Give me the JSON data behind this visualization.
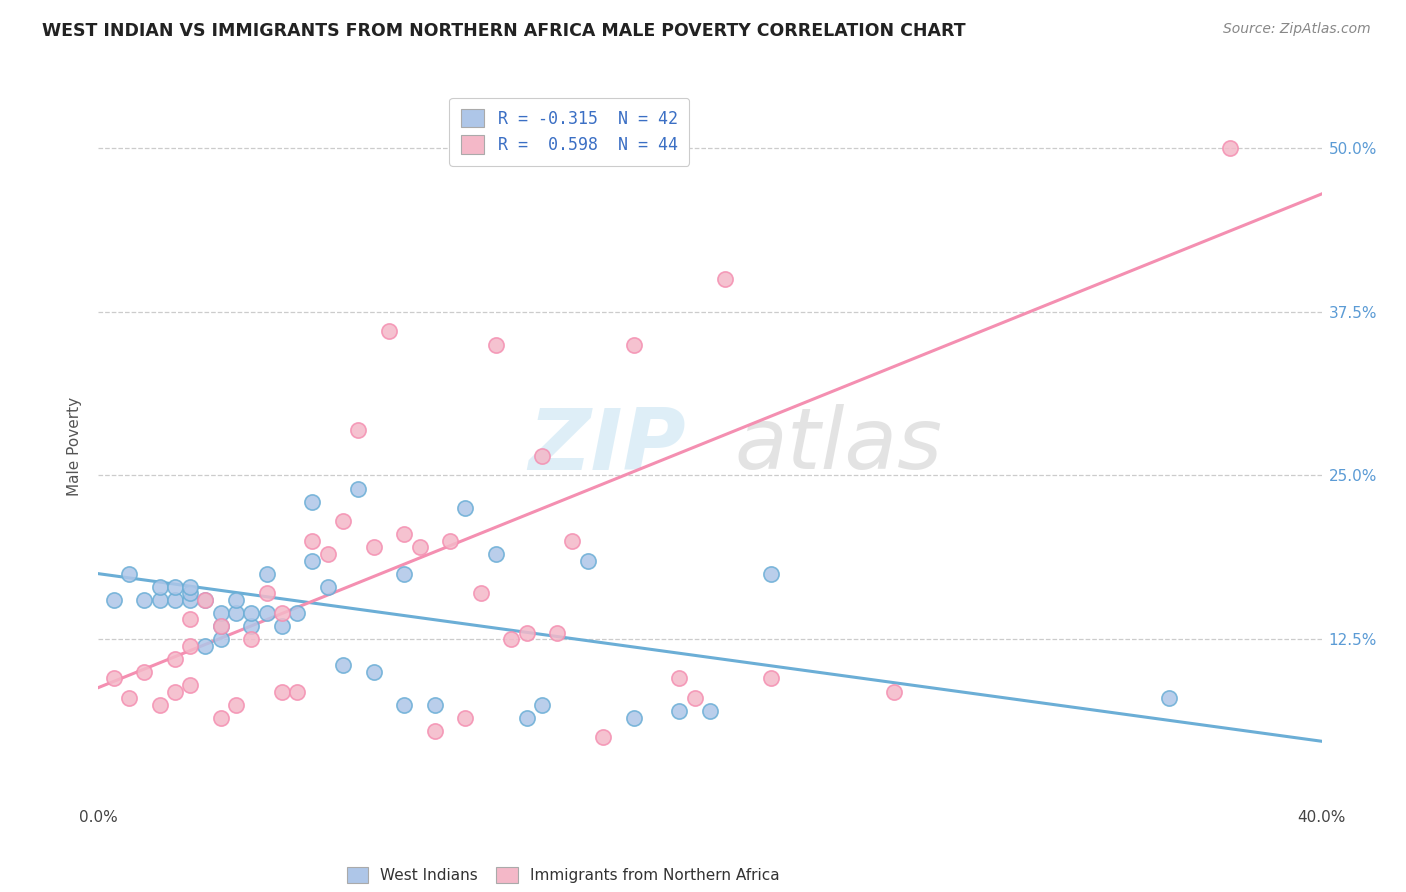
{
  "title": "WEST INDIAN VS IMMIGRANTS FROM NORTHERN AFRICA MALE POVERTY CORRELATION CHART",
  "source": "Source: ZipAtlas.com",
  "ylabel": "Male Poverty",
  "yticks": [
    "12.5%",
    "25.0%",
    "37.5%",
    "50.0%"
  ],
  "ytick_vals": [
    0.125,
    0.25,
    0.375,
    0.5
  ],
  "xlim": [
    0.0,
    0.4
  ],
  "ylim": [
    0.0,
    0.545
  ],
  "bottom_legend1": "West Indians",
  "bottom_legend2": "Immigrants from Northern Africa",
  "blue_color": "#6baed6",
  "pink_color": "#f48fb1",
  "blue_fill": "#aec6e8",
  "pink_fill": "#f4b8c8",
  "blue_scatter_x": [
    0.005,
    0.01,
    0.015,
    0.02,
    0.02,
    0.025,
    0.025,
    0.03,
    0.03,
    0.03,
    0.035,
    0.035,
    0.04,
    0.04,
    0.04,
    0.045,
    0.045,
    0.05,
    0.05,
    0.055,
    0.055,
    0.06,
    0.065,
    0.07,
    0.07,
    0.075,
    0.08,
    0.085,
    0.09,
    0.1,
    0.1,
    0.11,
    0.12,
    0.13,
    0.14,
    0.145,
    0.16,
    0.175,
    0.19,
    0.2,
    0.22,
    0.35
  ],
  "blue_scatter_y": [
    0.155,
    0.175,
    0.155,
    0.155,
    0.165,
    0.155,
    0.165,
    0.155,
    0.16,
    0.165,
    0.12,
    0.155,
    0.125,
    0.135,
    0.145,
    0.145,
    0.155,
    0.135,
    0.145,
    0.145,
    0.175,
    0.135,
    0.145,
    0.185,
    0.23,
    0.165,
    0.105,
    0.24,
    0.1,
    0.075,
    0.175,
    0.075,
    0.225,
    0.19,
    0.065,
    0.075,
    0.185,
    0.065,
    0.07,
    0.07,
    0.175,
    0.08
  ],
  "pink_scatter_x": [
    0.005,
    0.01,
    0.015,
    0.02,
    0.025,
    0.025,
    0.03,
    0.03,
    0.03,
    0.035,
    0.04,
    0.04,
    0.045,
    0.05,
    0.055,
    0.06,
    0.06,
    0.065,
    0.07,
    0.075,
    0.08,
    0.085,
    0.09,
    0.095,
    0.1,
    0.105,
    0.11,
    0.115,
    0.12,
    0.125,
    0.13,
    0.135,
    0.14,
    0.145,
    0.15,
    0.155,
    0.165,
    0.175,
    0.19,
    0.195,
    0.205,
    0.22,
    0.26,
    0.37
  ],
  "pink_scatter_y": [
    0.095,
    0.08,
    0.1,
    0.075,
    0.085,
    0.11,
    0.09,
    0.12,
    0.14,
    0.155,
    0.065,
    0.135,
    0.075,
    0.125,
    0.16,
    0.085,
    0.145,
    0.085,
    0.2,
    0.19,
    0.215,
    0.285,
    0.195,
    0.36,
    0.205,
    0.195,
    0.055,
    0.2,
    0.065,
    0.16,
    0.35,
    0.125,
    0.13,
    0.265,
    0.13,
    0.2,
    0.05,
    0.35,
    0.095,
    0.08,
    0.4,
    0.095,
    0.085,
    0.5
  ],
  "blue_line_x": [
    0.0,
    0.4
  ],
  "blue_line_y": [
    0.175,
    0.047
  ],
  "pink_line_x": [
    0.0,
    0.4
  ],
  "pink_line_y": [
    0.088,
    0.465
  ],
  "grid_color": "#cccccc",
  "background_color": "#ffffff",
  "leg1_r": "R = -0.315",
  "leg1_n": "  N = 42",
  "leg2_r": "R =  0.598",
  "leg2_n": "  N = 44"
}
